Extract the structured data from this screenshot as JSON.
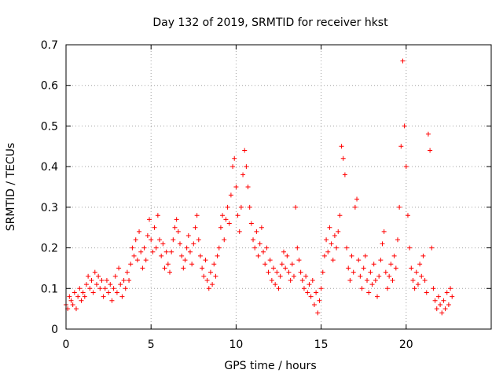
{
  "chart_data": {
    "type": "scatter",
    "title": "Day 132 of 2019, SRMTID for receiver hkst",
    "xlabel": "GPS time / hours",
    "ylabel": "SRMTID / TECUs",
    "xlim": [
      0,
      25
    ],
    "ylim": [
      0,
      0.7
    ],
    "xticks": [
      0,
      5,
      10,
      15,
      20
    ],
    "xtick_labels": [
      "0",
      "5",
      "10",
      "15",
      "20"
    ],
    "yticks": [
      0,
      0.1,
      0.2,
      0.3,
      0.4,
      0.5,
      0.6,
      0.7
    ],
    "ytick_labels": [
      "0",
      "0.1",
      "0.2",
      "0.3",
      "0.4",
      "0.5",
      "0.6",
      "0.7"
    ],
    "grid": true,
    "marker": "plus",
    "color": "#ff0000",
    "series": [
      {
        "name": "SRMTID",
        "points": [
          [
            0.0,
            0.06
          ],
          [
            0.1,
            0.05
          ],
          [
            0.2,
            0.08
          ],
          [
            0.3,
            0.07
          ],
          [
            0.4,
            0.06
          ],
          [
            0.5,
            0.09
          ],
          [
            0.6,
            0.05
          ],
          [
            0.7,
            0.08
          ],
          [
            0.8,
            0.1
          ],
          [
            0.9,
            0.07
          ],
          [
            1.0,
            0.09
          ],
          [
            1.1,
            0.08
          ],
          [
            1.2,
            0.11
          ],
          [
            1.3,
            0.13
          ],
          [
            1.4,
            0.1
          ],
          [
            1.5,
            0.12
          ],
          [
            1.6,
            0.09
          ],
          [
            1.7,
            0.14
          ],
          [
            1.8,
            0.11
          ],
          [
            1.9,
            0.13
          ],
          [
            2.0,
            0.1
          ],
          [
            2.1,
            0.12
          ],
          [
            2.2,
            0.08
          ],
          [
            2.3,
            0.1
          ],
          [
            2.4,
            0.12
          ],
          [
            2.5,
            0.09
          ],
          [
            2.6,
            0.11
          ],
          [
            2.7,
            0.07
          ],
          [
            2.8,
            0.1
          ],
          [
            2.9,
            0.13
          ],
          [
            3.0,
            0.09
          ],
          [
            3.1,
            0.15
          ],
          [
            3.2,
            0.11
          ],
          [
            3.3,
            0.08
          ],
          [
            3.4,
            0.12
          ],
          [
            3.5,
            0.1
          ],
          [
            3.6,
            0.14
          ],
          [
            3.7,
            0.12
          ],
          [
            3.8,
            0.16
          ],
          [
            3.9,
            0.2
          ],
          [
            4.0,
            0.18
          ],
          [
            4.1,
            0.22
          ],
          [
            4.2,
            0.17
          ],
          [
            4.3,
            0.24
          ],
          [
            4.4,
            0.19
          ],
          [
            4.5,
            0.15
          ],
          [
            4.6,
            0.2
          ],
          [
            4.7,
            0.17
          ],
          [
            4.8,
            0.23
          ],
          [
            4.9,
            0.27
          ],
          [
            5.0,
            0.22
          ],
          [
            5.1,
            0.19
          ],
          [
            5.2,
            0.25
          ],
          [
            5.3,
            0.2
          ],
          [
            5.4,
            0.28
          ],
          [
            5.5,
            0.22
          ],
          [
            5.6,
            0.18
          ],
          [
            5.7,
            0.21
          ],
          [
            5.8,
            0.15
          ],
          [
            5.9,
            0.19
          ],
          [
            6.0,
            0.16
          ],
          [
            6.1,
            0.14
          ],
          [
            6.2,
            0.19
          ],
          [
            6.3,
            0.22
          ],
          [
            6.4,
            0.25
          ],
          [
            6.5,
            0.27
          ],
          [
            6.6,
            0.24
          ],
          [
            6.7,
            0.21
          ],
          [
            6.8,
            0.18
          ],
          [
            6.9,
            0.15
          ],
          [
            7.0,
            0.17
          ],
          [
            7.1,
            0.2
          ],
          [
            7.2,
            0.23
          ],
          [
            7.3,
            0.19
          ],
          [
            7.4,
            0.16
          ],
          [
            7.5,
            0.21
          ],
          [
            7.6,
            0.25
          ],
          [
            7.7,
            0.28
          ],
          [
            7.8,
            0.22
          ],
          [
            7.9,
            0.18
          ],
          [
            8.0,
            0.15
          ],
          [
            8.1,
            0.13
          ],
          [
            8.2,
            0.17
          ],
          [
            8.3,
            0.12
          ],
          [
            8.4,
            0.1
          ],
          [
            8.5,
            0.14
          ],
          [
            8.6,
            0.11
          ],
          [
            8.7,
            0.16
          ],
          [
            8.8,
            0.13
          ],
          [
            8.9,
            0.18
          ],
          [
            9.0,
            0.2
          ],
          [
            9.1,
            0.25
          ],
          [
            9.2,
            0.28
          ],
          [
            9.3,
            0.22
          ],
          [
            9.4,
            0.27
          ],
          [
            9.5,
            0.3
          ],
          [
            9.6,
            0.26
          ],
          [
            9.7,
            0.33
          ],
          [
            9.8,
            0.4
          ],
          [
            9.9,
            0.42
          ],
          [
            10.0,
            0.35
          ],
          [
            10.1,
            0.28
          ],
          [
            10.2,
            0.24
          ],
          [
            10.3,
            0.3
          ],
          [
            10.4,
            0.38
          ],
          [
            10.5,
            0.44
          ],
          [
            10.6,
            0.4
          ],
          [
            10.7,
            0.35
          ],
          [
            10.8,
            0.3
          ],
          [
            10.9,
            0.26
          ],
          [
            11.0,
            0.22
          ],
          [
            11.1,
            0.2
          ],
          [
            11.2,
            0.24
          ],
          [
            11.3,
            0.18
          ],
          [
            11.4,
            0.21
          ],
          [
            11.5,
            0.25
          ],
          [
            11.6,
            0.19
          ],
          [
            11.7,
            0.16
          ],
          [
            11.8,
            0.2
          ],
          [
            11.9,
            0.14
          ],
          [
            12.0,
            0.17
          ],
          [
            12.1,
            0.12
          ],
          [
            12.2,
            0.15
          ],
          [
            12.3,
            0.11
          ],
          [
            12.4,
            0.14
          ],
          [
            12.5,
            0.1
          ],
          [
            12.6,
            0.13
          ],
          [
            12.7,
            0.16
          ],
          [
            12.8,
            0.19
          ],
          [
            12.9,
            0.15
          ],
          [
            13.0,
            0.18
          ],
          [
            13.1,
            0.14
          ],
          [
            13.2,
            0.12
          ],
          [
            13.3,
            0.16
          ],
          [
            13.4,
            0.13
          ],
          [
            13.5,
            0.3
          ],
          [
            13.6,
            0.2
          ],
          [
            13.7,
            0.17
          ],
          [
            13.8,
            0.14
          ],
          [
            13.9,
            0.12
          ],
          [
            14.0,
            0.1
          ],
          [
            14.1,
            0.13
          ],
          [
            14.2,
            0.09
          ],
          [
            14.3,
            0.11
          ],
          [
            14.4,
            0.08
          ],
          [
            14.5,
            0.12
          ],
          [
            14.6,
            0.06
          ],
          [
            14.7,
            0.09
          ],
          [
            14.8,
            0.04
          ],
          [
            14.9,
            0.07
          ],
          [
            15.0,
            0.1
          ],
          [
            15.1,
            0.14
          ],
          [
            15.2,
            0.18
          ],
          [
            15.3,
            0.22
          ],
          [
            15.4,
            0.19
          ],
          [
            15.5,
            0.25
          ],
          [
            15.6,
            0.21
          ],
          [
            15.7,
            0.17
          ],
          [
            15.8,
            0.23
          ],
          [
            15.9,
            0.2
          ],
          [
            16.0,
            0.24
          ],
          [
            16.1,
            0.28
          ],
          [
            16.2,
            0.45
          ],
          [
            16.3,
            0.42
          ],
          [
            16.4,
            0.38
          ],
          [
            16.5,
            0.2
          ],
          [
            16.6,
            0.15
          ],
          [
            16.7,
            0.12
          ],
          [
            16.8,
            0.18
          ],
          [
            16.9,
            0.14
          ],
          [
            17.0,
            0.3
          ],
          [
            17.1,
            0.32
          ],
          [
            17.2,
            0.17
          ],
          [
            17.3,
            0.13
          ],
          [
            17.4,
            0.1
          ],
          [
            17.5,
            0.15
          ],
          [
            17.6,
            0.18
          ],
          [
            17.7,
            0.12
          ],
          [
            17.8,
            0.09
          ],
          [
            17.9,
            0.14
          ],
          [
            18.0,
            0.11
          ],
          [
            18.1,
            0.16
          ],
          [
            18.2,
            0.12
          ],
          [
            18.3,
            0.08
          ],
          [
            18.4,
            0.13
          ],
          [
            18.5,
            0.17
          ],
          [
            18.6,
            0.21
          ],
          [
            18.7,
            0.24
          ],
          [
            18.8,
            0.14
          ],
          [
            18.9,
            0.1
          ],
          [
            19.0,
            0.13
          ],
          [
            19.1,
            0.16
          ],
          [
            19.2,
            0.12
          ],
          [
            19.3,
            0.18
          ],
          [
            19.4,
            0.15
          ],
          [
            19.5,
            0.22
          ],
          [
            19.6,
            0.3
          ],
          [
            19.7,
            0.45
          ],
          [
            19.8,
            0.66
          ],
          [
            19.9,
            0.5
          ],
          [
            20.0,
            0.4
          ],
          [
            20.1,
            0.28
          ],
          [
            20.2,
            0.2
          ],
          [
            20.3,
            0.15
          ],
          [
            20.4,
            0.12
          ],
          [
            20.5,
            0.1
          ],
          [
            20.6,
            0.14
          ],
          [
            20.7,
            0.11
          ],
          [
            20.8,
            0.16
          ],
          [
            20.9,
            0.13
          ],
          [
            21.0,
            0.18
          ],
          [
            21.1,
            0.12
          ],
          [
            21.2,
            0.09
          ],
          [
            21.3,
            0.48
          ],
          [
            21.4,
            0.44
          ],
          [
            21.5,
            0.2
          ],
          [
            21.6,
            0.1
          ],
          [
            21.7,
            0.07
          ],
          [
            21.8,
            0.05
          ],
          [
            21.9,
            0.08
          ],
          [
            22.0,
            0.06
          ],
          [
            22.1,
            0.04
          ],
          [
            22.2,
            0.07
          ],
          [
            22.3,
            0.05
          ],
          [
            22.4,
            0.09
          ],
          [
            22.5,
            0.06
          ],
          [
            22.6,
            0.1
          ],
          [
            22.7,
            0.08
          ]
        ]
      }
    ]
  }
}
